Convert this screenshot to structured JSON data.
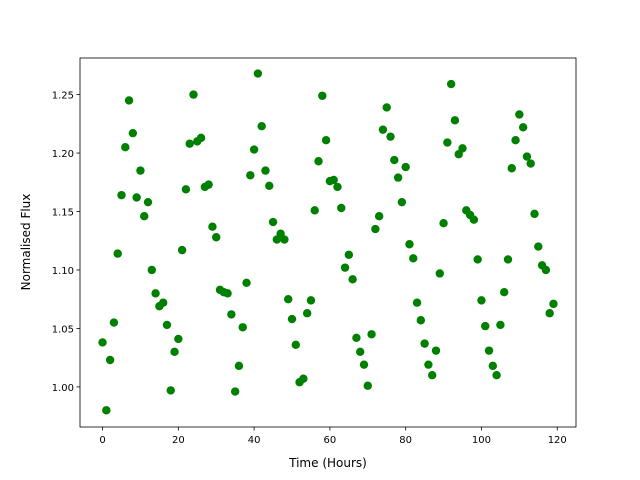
{
  "chart_data": {
    "type": "scatter",
    "xlabel": "Time (Hours)",
    "ylabel": "Normalised Flux",
    "color": "#008000",
    "x": [
      0,
      1,
      2,
      3,
      4,
      5,
      6,
      7,
      8,
      9,
      10,
      11,
      12,
      13,
      14,
      15,
      16,
      17,
      18,
      19,
      20,
      21,
      22,
      23,
      24,
      25,
      26,
      27,
      28,
      29,
      30,
      31,
      32,
      33,
      34,
      35,
      36,
      37,
      38,
      39,
      40,
      41,
      42,
      43,
      44,
      45,
      46,
      47,
      48,
      49,
      50,
      51,
      52,
      53,
      54,
      55,
      56,
      57,
      58,
      59,
      60,
      61,
      62,
      63,
      64,
      65,
      66,
      67,
      68,
      69,
      70,
      71,
      72,
      73,
      74,
      75,
      76,
      77,
      78,
      79,
      80,
      81,
      82,
      83,
      84,
      85,
      86,
      87,
      88,
      89,
      90,
      91,
      92,
      93,
      94,
      95,
      96,
      97,
      98,
      99,
      100,
      101,
      102,
      103,
      104,
      105,
      106,
      107,
      108,
      109,
      110,
      111,
      112,
      113,
      114,
      115,
      116,
      117,
      118,
      119
    ],
    "values": [
      1.038,
      0.98,
      1.023,
      1.055,
      1.114,
      1.164,
      1.205,
      1.245,
      1.217,
      1.162,
      1.185,
      1.146,
      1.158,
      1.1,
      1.08,
      1.069,
      1.072,
      1.053,
      0.997,
      1.03,
      1.041,
      1.117,
      1.169,
      1.208,
      1.25,
      1.21,
      1.213,
      1.171,
      1.173,
      1.137,
      1.128,
      1.083,
      1.081,
      1.08,
      1.062,
      0.996,
      1.018,
      1.051,
      1.089,
      1.181,
      1.203,
      1.268,
      1.223,
      1.185,
      1.172,
      1.141,
      1.126,
      1.131,
      1.126,
      1.075,
      1.058,
      1.036,
      1.004,
      1.007,
      1.063,
      1.074,
      1.151,
      1.193,
      1.249,
      1.211,
      1.176,
      1.177,
      1.171,
      1.153,
      1.102,
      1.113,
      1.092,
      1.042,
      1.03,
      1.019,
      1.001,
      1.045,
      1.135,
      1.146,
      1.22,
      1.239,
      1.214,
      1.194,
      1.179,
      1.158,
      1.188,
      1.122,
      1.11,
      1.072,
      1.057,
      1.037,
      1.019,
      1.01,
      1.031,
      1.097,
      1.14,
      1.209,
      1.259,
      1.228,
      1.199,
      1.204,
      1.151,
      1.147,
      1.143,
      1.109,
      1.074,
      1.052,
      1.031,
      1.018,
      1.01,
      1.053,
      1.081,
      1.109,
      1.187,
      1.211,
      1.233,
      1.222,
      1.197,
      1.191,
      1.148,
      1.12,
      1.104,
      1.1,
      1.063,
      1.071
    ],
    "xlim": [
      -5.95,
      124.95
    ],
    "ylim": [
      0.9657,
      1.2813
    ],
    "xticks": [
      0,
      20,
      40,
      60,
      80,
      100,
      120
    ],
    "yticks": [
      {
        "value": 1.0,
        "label": "1.00"
      },
      {
        "value": 1.05,
        "label": "1.05"
      },
      {
        "value": 1.1,
        "label": "1.10"
      },
      {
        "value": 1.15,
        "label": "1.15"
      },
      {
        "value": 1.2,
        "label": "1.20"
      },
      {
        "value": 1.25,
        "label": "1.25"
      }
    ]
  }
}
